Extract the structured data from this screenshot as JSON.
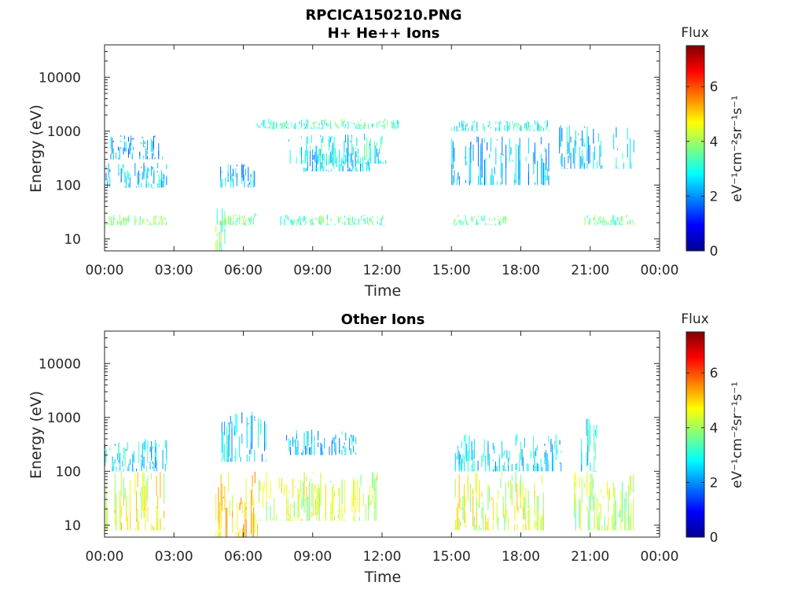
{
  "figure": {
    "filename_title": "RPCICA150210.PNG"
  },
  "chart_data": [
    {
      "type": "heatmap",
      "title": "H+ He++ Ions",
      "xlabel": "Time",
      "ylabel": "Energy (eV)",
      "x_ticks": [
        "00:00",
        "03:00",
        "06:00",
        "09:00",
        "12:00",
        "15:00",
        "18:00",
        "21:00",
        "00:00"
      ],
      "x_range_hours": [
        0,
        24
      ],
      "y_scale": "log",
      "y_ticks": [
        10,
        100,
        1000,
        10000
      ],
      "y_tick_labels": [
        "10",
        "100",
        "1000",
        "10000"
      ],
      "y_range": [
        6,
        40000
      ],
      "colorbar": {
        "label": "Flux",
        "units": "eV⁻¹cm⁻²sr⁻¹s⁻¹",
        "range": [
          0,
          7.5
        ],
        "ticks": [
          0,
          2,
          4,
          6
        ],
        "colormap": "jet"
      },
      "regions": [
        {
          "t": [
            0.05,
            2.7
          ],
          "e": [
            18,
            28
          ],
          "flux": 3.8
        },
        {
          "t": [
            0.05,
            2.7
          ],
          "e": [
            90,
            260
          ],
          "flux": 2.4
        },
        {
          "t": [
            0.2,
            2.6
          ],
          "e": [
            300,
            850
          ],
          "flux": 2.2
        },
        {
          "t": [
            4.8,
            5.2
          ],
          "e": [
            6,
            40
          ],
          "flux": 3.5
        },
        {
          "t": [
            4.9,
            6.6
          ],
          "e": [
            18,
            30
          ],
          "flux": 3.6
        },
        {
          "t": [
            5.0,
            6.5
          ],
          "e": [
            90,
            250
          ],
          "flux": 2.4
        },
        {
          "t": [
            6.6,
            12.8
          ],
          "e": [
            1100,
            1700
          ],
          "flux": 3.2
        },
        {
          "t": [
            7.9,
            12.2
          ],
          "e": [
            250,
            900
          ],
          "flux": 2.8
        },
        {
          "t": [
            8.6,
            11.5
          ],
          "e": [
            180,
            500
          ],
          "flux": 2.5
        },
        {
          "t": [
            7.6,
            12.1
          ],
          "e": [
            18,
            28
          ],
          "flux": 3.4
        },
        {
          "t": [
            15.0,
            19.2
          ],
          "e": [
            1000,
            1600
          ],
          "flux": 3.0
        },
        {
          "t": [
            15.0,
            19.2
          ],
          "e": [
            100,
            800
          ],
          "flux": 2.3
        },
        {
          "t": [
            19.6,
            21.6
          ],
          "e": [
            200,
            1300
          ],
          "flux": 2.5
        },
        {
          "t": [
            22.0,
            22.9
          ],
          "e": [
            200,
            1400
          ],
          "flux": 2.5
        },
        {
          "t": [
            15.1,
            17.4
          ],
          "e": [
            18,
            28
          ],
          "flux": 3.5
        },
        {
          "t": [
            20.7,
            22.9
          ],
          "e": [
            18,
            28
          ],
          "flux": 3.5
        }
      ]
    },
    {
      "type": "heatmap",
      "title": "Other Ions",
      "xlabel": "Time",
      "ylabel": "Energy (eV)",
      "x_ticks": [
        "00:00",
        "03:00",
        "06:00",
        "09:00",
        "12:00",
        "15:00",
        "18:00",
        "21:00",
        "00:00"
      ],
      "x_range_hours": [
        0,
        24
      ],
      "y_scale": "log",
      "y_ticks": [
        10,
        100,
        1000,
        10000
      ],
      "y_tick_labels": [
        "10",
        "100",
        "1000",
        "10000"
      ],
      "y_range": [
        6,
        40000
      ],
      "colorbar": {
        "label": "Flux",
        "units": "eV⁻¹cm⁻²sr⁻¹s⁻¹",
        "range": [
          0,
          7.5
        ],
        "ticks": [
          0,
          2,
          4,
          6
        ],
        "colormap": "jet"
      },
      "regions": [
        {
          "t": [
            0.0,
            2.7
          ],
          "e": [
            8,
            100
          ],
          "flux": 4.6
        },
        {
          "t": [
            0.0,
            2.7
          ],
          "e": [
            100,
            400
          ],
          "flux": 2.6
        },
        {
          "t": [
            4.8,
            6.6
          ],
          "e": [
            6,
            100
          ],
          "flux": 5.0
        },
        {
          "t": [
            5.0,
            7.0
          ],
          "e": [
            150,
            1300
          ],
          "flux": 2.4
        },
        {
          "t": [
            6.5,
            11.8
          ],
          "e": [
            12,
            100
          ],
          "flux": 4.3
        },
        {
          "t": [
            7.8,
            10.9
          ],
          "e": [
            200,
            600
          ],
          "flux": 2.4
        },
        {
          "t": [
            15.1,
            19.0
          ],
          "e": [
            8,
            100
          ],
          "flux": 4.4
        },
        {
          "t": [
            15.1,
            19.8
          ],
          "e": [
            100,
            500
          ],
          "flux": 2.6
        },
        {
          "t": [
            20.3,
            22.9
          ],
          "e": [
            8,
            100
          ],
          "flux": 4.1
        },
        {
          "t": [
            20.5,
            21.3
          ],
          "e": [
            100,
            1000
          ],
          "flux": 2.6
        }
      ]
    }
  ]
}
